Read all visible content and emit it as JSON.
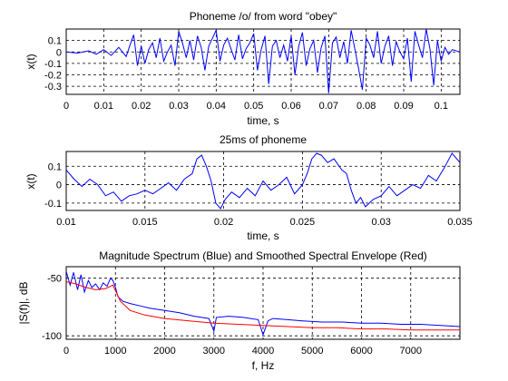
{
  "chart_data": [
    {
      "type": "line",
      "title": "Phoneme /o/ from word \"obey\"",
      "xlabel": "time, s",
      "ylabel": "x(t)",
      "xlim": [
        0,
        0.105
      ],
      "ylim": [
        -0.37,
        0.2
      ],
      "xticks": [
        0,
        0.01,
        0.02,
        0.03,
        0.04,
        0.05,
        0.06,
        0.07,
        0.08,
        0.09,
        0.1
      ],
      "xtick_labels": [
        "0",
        "0.01",
        "0.02",
        "0.03",
        "0.04",
        "0.05",
        "0.06",
        "0.07",
        "0.08",
        "0.09",
        "0.1"
      ],
      "yticks": [
        0.1,
        0,
        -0.1,
        -0.2,
        -0.3
      ],
      "ytick_labels": [
        "0.1",
        "0",
        "-0.1",
        "-0.2",
        "-0.3"
      ],
      "grid": true,
      "series": [
        {
          "color": "#0000ff",
          "x": [
            0,
            0.003,
            0.006,
            0.008,
            0.01,
            0.012,
            0.014,
            0.016,
            0.017,
            0.018,
            0.019,
            0.02,
            0.021,
            0.022,
            0.023,
            0.024,
            0.025,
            0.026,
            0.027,
            0.028,
            0.029,
            0.03,
            0.031,
            0.032,
            0.033,
            0.034,
            0.035,
            0.036,
            0.037,
            0.038,
            0.039,
            0.04,
            0.041,
            0.042,
            0.043,
            0.044,
            0.045,
            0.046,
            0.047,
            0.048,
            0.049,
            0.05,
            0.051,
            0.052,
            0.053,
            0.054,
            0.055,
            0.056,
            0.057,
            0.058,
            0.059,
            0.06,
            0.061,
            0.062,
            0.063,
            0.064,
            0.065,
            0.066,
            0.067,
            0.068,
            0.069,
            0.07,
            0.071,
            0.072,
            0.073,
            0.074,
            0.075,
            0.076,
            0.077,
            0.078,
            0.079,
            0.08,
            0.081,
            0.082,
            0.083,
            0.084,
            0.085,
            0.086,
            0.087,
            0.088,
            0.089,
            0.09,
            0.091,
            0.092,
            0.093,
            0.094,
            0.095,
            0.096,
            0.097,
            0.098,
            0.099,
            0.1,
            0.101,
            0.102,
            0.103,
            0.105
          ],
          "y": [
            0.0,
            -0.01,
            0.01,
            -0.02,
            0.02,
            -0.03,
            0.04,
            -0.04,
            0.06,
            0.15,
            -0.12,
            0.05,
            -0.1,
            0.02,
            0.08,
            -0.05,
            0.12,
            -0.08,
            0.0,
            0.06,
            -0.12,
            0.18,
            0.08,
            -0.05,
            0.1,
            -0.07,
            0.14,
            0.04,
            -0.16,
            0.05,
            0.12,
            0.19,
            -0.08,
            0.06,
            0.12,
            0.02,
            -0.07,
            0.15,
            -0.06,
            0.03,
            0.08,
            0.16,
            -0.16,
            0.02,
            0.14,
            -0.28,
            0.05,
            0.1,
            -0.05,
            0.06,
            -0.08,
            0.14,
            -0.2,
            0.05,
            0.17,
            -0.12,
            0.03,
            0.1,
            -0.18,
            0.04,
            0.14,
            -0.36,
            0.08,
            0.13,
            -0.05,
            0.09,
            -0.1,
            0.19,
            0.02,
            -0.15,
            -0.33,
            0.12,
            0.06,
            -0.05,
            0.18,
            -0.1,
            0.05,
            0.14,
            -0.12,
            0.09,
            0.0,
            -0.06,
            0.12,
            -0.26,
            0.18,
            0.06,
            -0.05,
            0.2,
            0.03,
            -0.29,
            0.1,
            -0.08,
            0.04,
            -0.02,
            0.02,
            0.0
          ]
        }
      ]
    },
    {
      "type": "line",
      "title": "25ms of phoneme",
      "xlabel": "time, s",
      "ylabel": "x(t)",
      "xlim": [
        0.01,
        0.035
      ],
      "ylim": [
        -0.14,
        0.18
      ],
      "xticks": [
        0.01,
        0.015,
        0.02,
        0.025,
        0.03,
        0.035
      ],
      "xtick_labels": [
        "0.01",
        "0.015",
        "0.02",
        "0.025",
        "0.03",
        "0.035"
      ],
      "yticks": [
        0.1,
        0,
        -0.1
      ],
      "ytick_labels": [
        "0.1",
        "0",
        "-0.1"
      ],
      "grid": true,
      "series": [
        {
          "color": "#0000ff",
          "x": [
            0.01,
            0.0105,
            0.011,
            0.0115,
            0.012,
            0.0125,
            0.013,
            0.0135,
            0.014,
            0.0145,
            0.015,
            0.0155,
            0.016,
            0.0165,
            0.017,
            0.0175,
            0.018,
            0.0183,
            0.0186,
            0.0189,
            0.0192,
            0.0195,
            0.0198,
            0.0201,
            0.0205,
            0.021,
            0.0215,
            0.022,
            0.0225,
            0.023,
            0.0235,
            0.024,
            0.0245,
            0.025,
            0.0253,
            0.0256,
            0.0259,
            0.0262,
            0.0266,
            0.027,
            0.0275,
            0.0278,
            0.0281,
            0.0284,
            0.0287,
            0.029,
            0.0295,
            0.03,
            0.0305,
            0.031,
            0.0315,
            0.032,
            0.0325,
            0.033,
            0.0335,
            0.034,
            0.0345,
            0.035
          ],
          "y": [
            0.08,
            0.03,
            -0.01,
            0.03,
            0.0,
            -0.06,
            -0.04,
            -0.09,
            -0.06,
            -0.05,
            -0.03,
            -0.05,
            -0.02,
            0.01,
            -0.03,
            0.03,
            0.06,
            0.14,
            0.16,
            0.1,
            0.02,
            -0.1,
            -0.13,
            -0.08,
            -0.04,
            -0.07,
            -0.02,
            -0.06,
            0.02,
            -0.03,
            0.0,
            0.04,
            -0.05,
            0.0,
            0.06,
            0.14,
            0.17,
            0.16,
            0.12,
            0.14,
            0.08,
            0.06,
            -0.03,
            -0.1,
            -0.07,
            -0.12,
            -0.08,
            -0.06,
            -0.01,
            -0.06,
            -0.03,
            0.0,
            -0.02,
            0.05,
            0.02,
            0.09,
            0.17,
            0.12
          ]
        }
      ]
    },
    {
      "type": "line",
      "title": "Magnitude Spectrum (Blue) and Smoothed Spectral Envelope (Red)",
      "xlabel": "f, Hz",
      "ylabel": "|S(f)|, dB",
      "xlim": [
        0,
        8000
      ],
      "ylim": [
        -103,
        -40
      ],
      "xticks": [
        0,
        1000,
        2000,
        3000,
        4000,
        5000,
        6000,
        7000
      ],
      "xtick_labels": [
        "0",
        "1000",
        "2000",
        "3000",
        "4000",
        "5000",
        "6000",
        "7000"
      ],
      "yticks": [
        -50,
        -100
      ],
      "ytick_labels": [
        "-50",
        "-100"
      ],
      "grid": true,
      "series": [
        {
          "color": "#0000ff",
          "x": [
            0,
            80,
            150,
            230,
            300,
            370,
            450,
            520,
            600,
            680,
            750,
            830,
            900,
            950,
            1000,
            1050,
            1150,
            1300,
            1500,
            1700,
            2000,
            2300,
            2600,
            2900,
            3000,
            3050,
            3300,
            3600,
            3900,
            4000,
            4100,
            4200,
            4500,
            4800,
            5200,
            5600,
            6000,
            6400,
            6800,
            7200,
            7600,
            8000
          ],
          "y": [
            -44,
            -56,
            -45,
            -60,
            -47,
            -62,
            -52,
            -58,
            -55,
            -60,
            -54,
            -57,
            -50,
            -52,
            -58,
            -66,
            -70,
            -72,
            -74,
            -76,
            -78,
            -80,
            -83,
            -85,
            -96,
            -84,
            -83,
            -84,
            -86,
            -99,
            -87,
            -85,
            -86,
            -87,
            -88,
            -88,
            -89,
            -89,
            -90,
            -90,
            -91,
            -92
          ]
        },
        {
          "color": "#ff0000",
          "x": [
            0,
            200,
            400,
            600,
            800,
            950,
            1100,
            1300,
            1600,
            2000,
            2500,
            3000,
            3500,
            4000,
            4500,
            5000,
            5500,
            6000,
            6500,
            7000,
            7500,
            8000
          ],
          "y": [
            -53,
            -55,
            -58,
            -60,
            -59,
            -56,
            -70,
            -78,
            -82,
            -85,
            -87,
            -89,
            -90,
            -91,
            -92,
            -93,
            -93,
            -94,
            -94,
            -95,
            -95,
            -95
          ]
        }
      ]
    }
  ]
}
